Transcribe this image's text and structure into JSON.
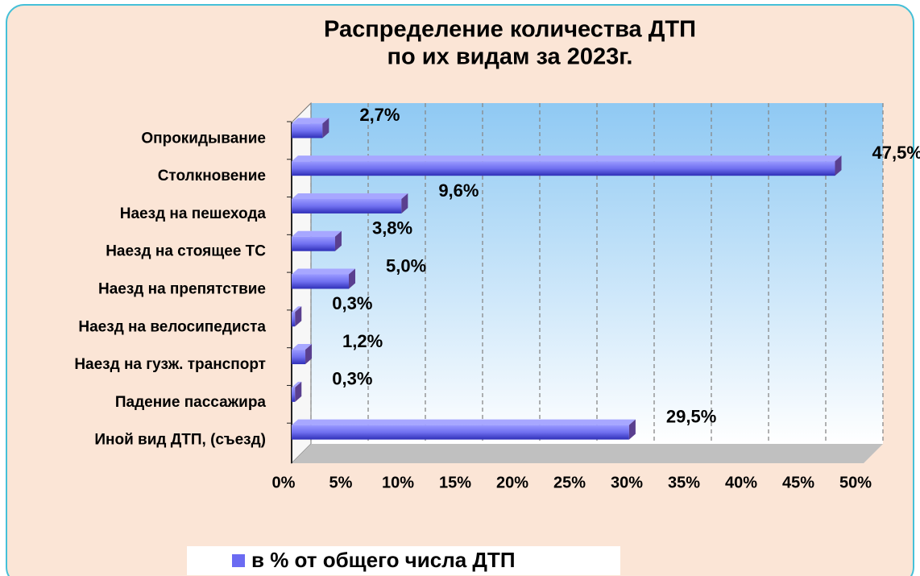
{
  "chart_data": {
    "type": "bar",
    "orientation": "horizontal",
    "title": [
      "Распределение количества ДТП",
      "по их видам за 2023г."
    ],
    "categories": [
      "Опрокидывание",
      "Столкновение",
      "Наезд на пешехода",
      "Наезд на стоящее  ТС",
      "Наезд на препятствие",
      "Наезд на велосипедиста",
      "Наезд на гузж. транспорт",
      "Падение пассажира",
      "Иной вид ДТП, (съезд)"
    ],
    "series": [
      {
        "name": "в % от общего числа ДТП",
        "color": "#6b6bf2",
        "values": [
          2.7,
          47.5,
          9.6,
          3.8,
          5.0,
          0.3,
          1.2,
          0.3,
          29.5
        ],
        "value_labels": [
          "2,7%",
          "47,5%",
          "9,6%",
          "3,8%",
          "5,0%",
          "0,3%",
          "1,2%",
          "0,3%",
          "29,5%"
        ]
      }
    ],
    "xlim": [
      0,
      50
    ],
    "xticks": [
      {
        "value": 0,
        "label": "0%"
      },
      {
        "value": 5,
        "label": "5%"
      },
      {
        "value": 10,
        "label": "10%"
      },
      {
        "value": 15,
        "label": "15%"
      },
      {
        "value": 20,
        "label": "20%"
      },
      {
        "value": 25,
        "label": "25%"
      },
      {
        "value": 30,
        "label": "30%"
      },
      {
        "value": 35,
        "label": "35%"
      },
      {
        "value": 40,
        "label": "40%"
      },
      {
        "value": 45,
        "label": "45%"
      },
      {
        "value": 50,
        "label": "50%"
      }
    ],
    "grid": true,
    "legend": "bottom"
  }
}
